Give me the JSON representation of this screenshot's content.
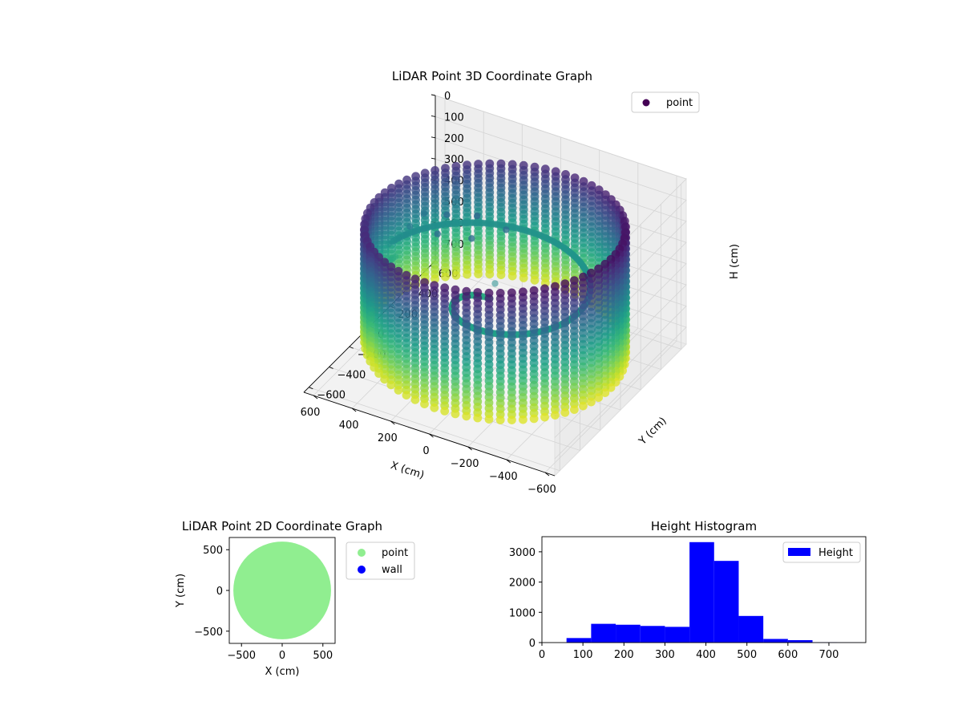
{
  "chart_data": [
    {
      "type": "scatter",
      "subtype": "3d-scatter",
      "title": "LiDAR Point 3D Coordinate Graph",
      "xlabel": "X (cm)",
      "ylabel": "Y (cm)",
      "zlabel": "H (cm)",
      "xlim": [
        -650,
        650
      ],
      "ylim": [
        -650,
        650
      ],
      "zlim": [
        0,
        780
      ],
      "z_inverted": true,
      "x_ticks": [
        -600,
        -400,
        -200,
        0,
        200,
        400,
        600
      ],
      "y_ticks": [
        -600,
        -400,
        -200,
        0,
        200,
        400,
        600
      ],
      "z_ticks": [
        0,
        100,
        200,
        300,
        400,
        500,
        600,
        700
      ],
      "colormap": "viridis",
      "color_by": "H (cm)",
      "grid": true,
      "legend": {
        "position": "top-right",
        "entries": [
          {
            "label": "point",
            "color": "#440154"
          }
        ]
      },
      "shape": "cylindrical wall",
      "wall_radius": 600,
      "wall_height_range": [
        80,
        690
      ],
      "floor_height_range": [
        380,
        460
      ],
      "outliers": [
        [
          250,
          300,
          280
        ],
        [
          380,
          250,
          290
        ],
        [
          200,
          150,
          300
        ],
        [
          500,
          250,
          320
        ],
        [
          350,
          100,
          300
        ],
        [
          520,
          150,
          340
        ],
        [
          100,
          300,
          300
        ]
      ]
    },
    {
      "type": "scatter",
      "title": "LiDAR Point 2D Coordinate Graph",
      "xlabel": "X (cm)",
      "ylabel": "Y (cm)",
      "xlim": [
        -650,
        650
      ],
      "ylim": [
        -650,
        650
      ],
      "x_ticks": [
        -500,
        0,
        500
      ],
      "y_ticks": [
        -500,
        0,
        500
      ],
      "grid": false,
      "legend": {
        "position": "outside-right",
        "entries": [
          {
            "label": "point",
            "color": "#90ee90"
          },
          {
            "label": "wall",
            "color": "#0000ff"
          }
        ]
      },
      "point_region": {
        "shape": "disk",
        "center": [
          0,
          0
        ],
        "radius": 600,
        "color": "#90ee90"
      }
    },
    {
      "type": "bar",
      "subtype": "histogram",
      "title": "Height Histogram",
      "xlim": [
        0,
        790
      ],
      "ylim": [
        0,
        3500
      ],
      "x_ticks": [
        0,
        100,
        200,
        300,
        400,
        500,
        600,
        700
      ],
      "y_ticks": [
        0,
        1000,
        2000,
        3000
      ],
      "color": "#0000ff",
      "legend": {
        "position": "top-right",
        "entries": [
          {
            "label": "Height",
            "color": "#0000ff"
          }
        ]
      },
      "bin_edges": [
        60,
        120,
        180,
        240,
        300,
        360,
        420,
        480,
        540,
        600,
        660,
        720,
        780
      ],
      "counts": [
        150,
        620,
        590,
        550,
        520,
        3320,
        2700,
        880,
        120,
        80,
        10,
        5
      ]
    }
  ]
}
